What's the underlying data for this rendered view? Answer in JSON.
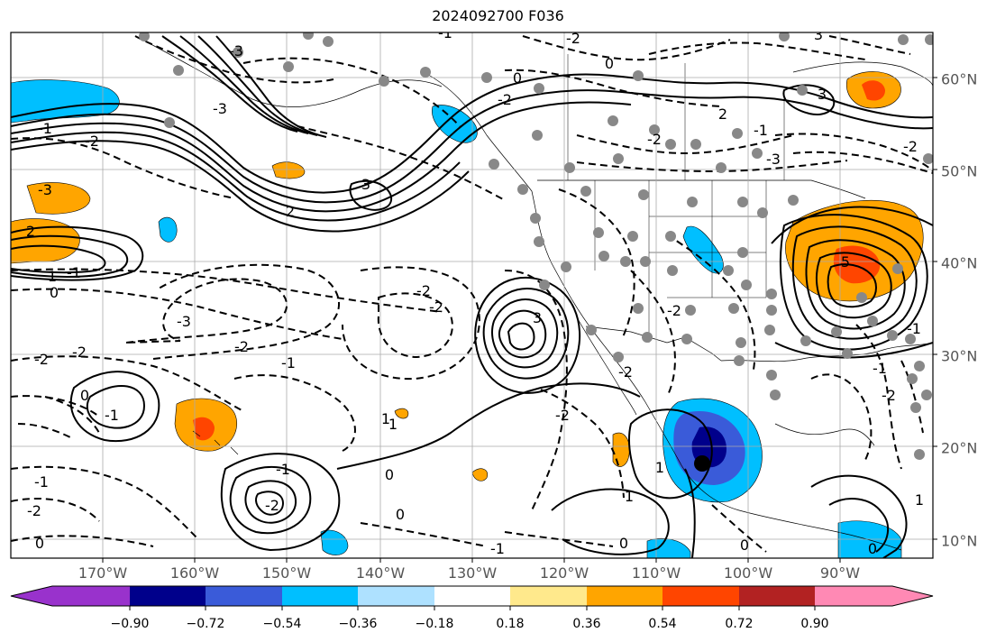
{
  "title": "2024092700 F036",
  "lon_labels": [
    "170°W",
    "160°W",
    "150°W",
    "140°W",
    "130°W",
    "120°W",
    "110°W",
    "100°W",
    "90°W"
  ],
  "lat_labels": [
    "60°N",
    "50°N",
    "40°N",
    "30°N",
    "20°N",
    "10°N"
  ],
  "colorbar": {
    "labels": [
      "−0.90",
      "−0.72",
      "−0.54",
      "−0.36",
      "−0.18",
      "0.18",
      "0.36",
      "0.54",
      "0.72",
      "0.90"
    ],
    "colors": [
      "#9932cc",
      "#00008b",
      "#3a5bd9",
      "#00bfff",
      "#aee1ff",
      "#ffffff",
      "#ffe98c",
      "#ffa500",
      "#ff4500",
      "#b22222",
      "#ff89b4"
    ]
  },
  "contour_labels": [
    "0",
    "-1",
    "-2",
    "-3",
    "1",
    "2",
    "3",
    "5",
    "-2",
    "-3",
    "-2",
    "-1",
    "-2",
    "-2",
    "-1",
    "0",
    "-1",
    "-2",
    "0",
    "-1",
    "3",
    "2",
    "0",
    "3",
    "1",
    "-1",
    "0",
    "0",
    "1",
    "-2",
    "-2",
    "-1",
    "-3",
    "-2",
    "-2",
    "-3",
    "-2",
    "-3",
    "3",
    "-2",
    "-1",
    "1",
    "0",
    "-2",
    "2",
    "-1",
    "-1",
    "1",
    "1",
    "0",
    "0",
    "0",
    "-2",
    "-2",
    "-1",
    "-2"
  ]
}
